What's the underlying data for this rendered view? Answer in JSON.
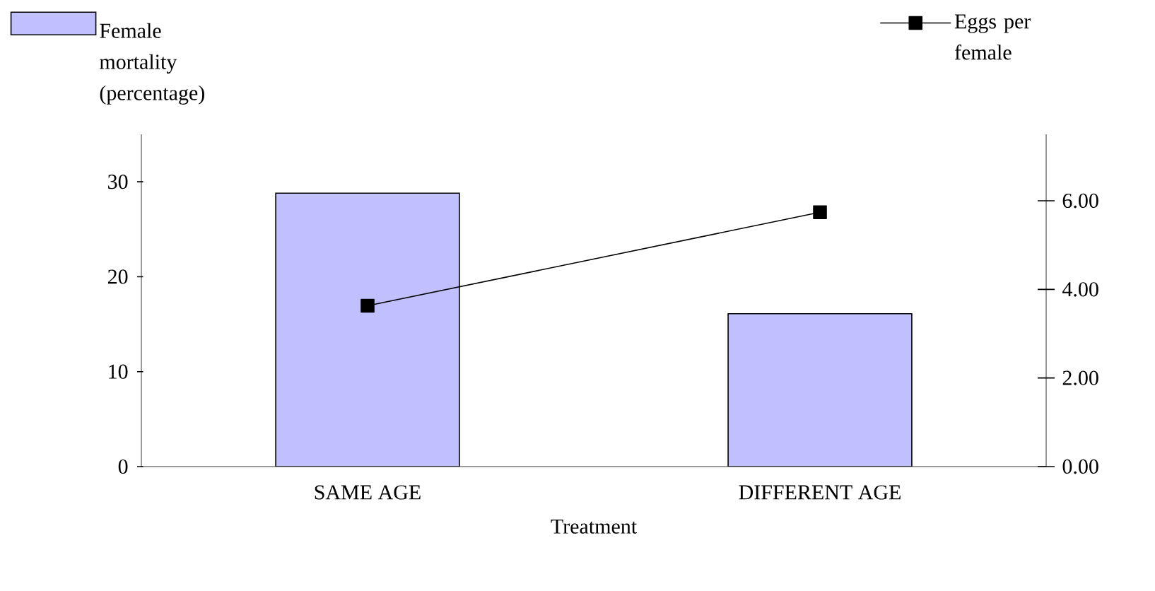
{
  "chart_data": {
    "type": "bar",
    "xlabel": "Treatment",
    "categories": [
      "SAME AGE",
      "DIFFERENT AGE"
    ],
    "series": [
      {
        "name": "Female mortality (percentage)",
        "color": "#c0c0ff",
        "values": [
          28.8,
          16.1
        ]
      },
      {
        "name": "Eggs per female",
        "type": "line",
        "axis": "y2",
        "color": "#000000",
        "marker": "square",
        "values": [
          3.63,
          5.74
        ]
      }
    ],
    "ylim": [
      0,
      35
    ],
    "yticks": [
      0,
      10,
      20,
      30
    ],
    "y2lim": [
      0,
      7.5
    ],
    "y2ticks": [
      {
        "value": 0,
        "label": "0.00"
      },
      {
        "value": 2,
        "label": "2.00"
      },
      {
        "value": 4,
        "label": "4.00"
      },
      {
        "value": 6,
        "label": "6.00"
      }
    ],
    "grid": false,
    "legend": "top"
  }
}
